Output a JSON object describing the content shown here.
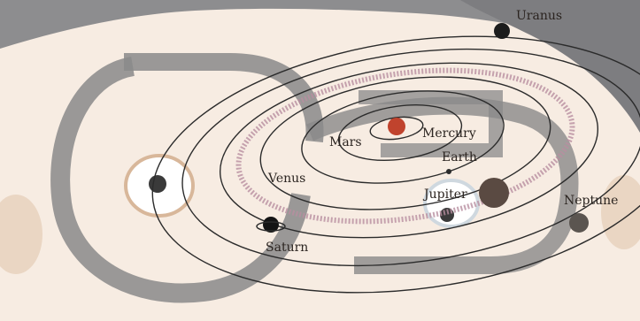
{
  "scene": {
    "planet_labels": {
      "uranus": "Uranus",
      "mars": "Mars",
      "mercury": "Mercury",
      "earth": "Earth",
      "venus": "Venus",
      "jupiter": "Jupiter",
      "neptune": "Neptune",
      "saturn": "Saturn"
    },
    "colors": {
      "background": "#f7ece2",
      "face_grey": "#8d8d8f",
      "orbit_line": "#2b2b2b",
      "sun": "#c0432d",
      "asteroid_belt": "#b88fa0",
      "overlay_grey": "#8a8a8a",
      "cheek": "#ead6c3"
    }
  }
}
